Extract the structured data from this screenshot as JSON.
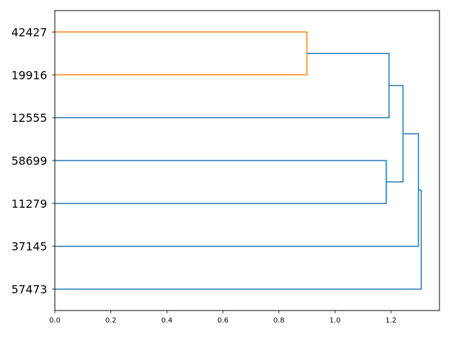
{
  "chart_data": {
    "type": "dendrogram",
    "orientation": "left-to-right",
    "title": "",
    "xlabel": "",
    "ylabel": "",
    "xlim": [
      0,
      1.373
    ],
    "xticks": [
      "0.0",
      "0.2",
      "0.4",
      "0.6",
      "0.8",
      "1.0",
      "1.2"
    ],
    "xtick_values": [
      0,
      0.2,
      0.4,
      0.6,
      0.8,
      1.0,
      1.2
    ],
    "leaves": [
      "42427",
      "19916",
      "12555",
      "58699",
      "11279",
      "37145",
      "57473"
    ],
    "grid": false,
    "colors": {
      "cluster": "#ff7f0e",
      "above_threshold": "#1f77b4"
    },
    "links": [
      {
        "a": "42427",
        "b": "19916",
        "distance": 0.9,
        "color": "#ff7f0e",
        "id": "c1"
      },
      {
        "a": "c1",
        "b": "12555",
        "distance": 1.193,
        "color": "#1f77b4",
        "id": "c2"
      },
      {
        "a": "58699",
        "b": "11279",
        "distance": 1.183,
        "color": "#1f77b4",
        "id": "c3"
      },
      {
        "a": "c2",
        "b": "c3",
        "distance": 1.243,
        "color": "#1f77b4",
        "id": "c4"
      },
      {
        "a": "c4",
        "b": "37145",
        "distance": 1.298,
        "color": "#1f77b4",
        "id": "c5"
      },
      {
        "a": "c5",
        "b": "57473",
        "distance": 1.308,
        "color": "#1f77b4",
        "id": "c6"
      }
    ]
  }
}
